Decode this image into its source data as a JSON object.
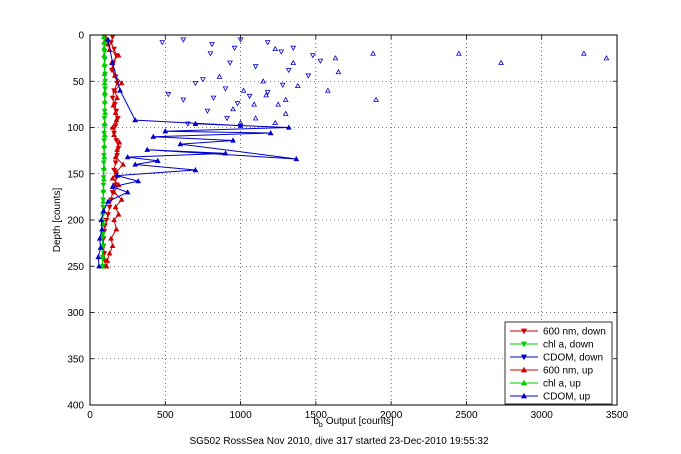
{
  "chart_data": {
    "type": "scatter",
    "title": "",
    "xlabel": "Output [counts]",
    "xlabel_prefix": "b",
    "xlabel_subscript": "b",
    "ylabel": "Depth [counts]",
    "caption": "SG502 RossSea Nov 2010, dive 317 started 23-Dec-2010 19:55:32",
    "xlim": [
      0,
      3500
    ],
    "ylim": [
      0,
      400
    ],
    "y_reversed": true,
    "grid": true,
    "legend_position": "bottom-right",
    "x_ticks": [
      "0",
      "500",
      "1000",
      "1500",
      "2000",
      "2500",
      "3000",
      "3500"
    ],
    "y_ticks": [
      "0",
      "50",
      "100",
      "150",
      "200",
      "250",
      "300",
      "350",
      "400"
    ],
    "series": [
      {
        "name": "600 nm, down",
        "color": "#cc0000",
        "marker": "triangle-down",
        "connected": true,
        "x": [
          150,
          140,
          160,
          175,
          155,
          145,
          170,
          180,
          160,
          150,
          165,
          175,
          185,
          170,
          160,
          175,
          190,
          180,
          170,
          160,
          175,
          165,
          150,
          140,
          130,
          120,
          110,
          100,
          95,
          90,
          90,
          95,
          100,
          100
        ],
        "y": [
          2,
          8,
          15,
          22,
          30,
          38,
          45,
          52,
          60,
          68,
          75,
          82,
          90,
          98,
          106,
          114,
          122,
          130,
          138,
          146,
          154,
          162,
          170,
          178,
          186,
          194,
          200,
          206,
          212,
          220,
          228,
          236,
          244,
          250
        ]
      },
      {
        "name": "chl a, down",
        "color": "#00cc00",
        "marker": "triangle-down",
        "connected": true,
        "x": [
          95,
          96,
          97,
          98,
          99,
          100,
          101,
          100,
          99,
          98,
          97,
          96,
          95,
          94,
          94,
          93,
          92,
          91,
          90,
          90,
          89,
          88,
          88,
          87,
          87,
          86,
          86,
          85,
          85,
          85
        ],
        "y": [
          2,
          10,
          18,
          26,
          34,
          42,
          50,
          58,
          66,
          74,
          82,
          90,
          98,
          106,
          114,
          122,
          130,
          138,
          146,
          154,
          162,
          170,
          178,
          186,
          194,
          202,
          215,
          228,
          240,
          250
        ]
      },
      {
        "name": "CDOM, down",
        "color": "#0000cc",
        "marker": "triangle-down",
        "connected": false,
        "x": [
          480,
          620,
          810,
          1000,
          1180,
          1350,
          1480,
          1530,
          960,
          1270,
          1320,
          800,
          930,
          1100,
          1450,
          1280,
          750,
          1180,
          900,
          1060,
          700,
          820,
          980,
          620,
          520,
          780,
          910,
          650
        ],
        "y": [
          8,
          5,
          10,
          5,
          8,
          14,
          22,
          28,
          14,
          18,
          38,
          20,
          30,
          34,
          44,
          54,
          48,
          62,
          58,
          66,
          52,
          68,
          74,
          70,
          64,
          82,
          90,
          96
        ]
      },
      {
        "name": "600 nm, up",
        "color": "#cc0000",
        "marker": "triangle-up",
        "connected": true,
        "x": [
          110,
          115,
          130,
          150,
          140,
          175,
          160,
          190,
          170,
          210,
          160,
          190,
          150,
          175,
          220,
          170,
          180,
          195,
          160,
          150,
          175,
          170,
          155,
          180,
          165,
          210,
          165,
          150,
          145,
          190,
          130,
          120,
          110,
          100
        ],
        "y": [
          250,
          244,
          236,
          228,
          220,
          210,
          200,
          194,
          186,
          178,
          170,
          162,
          155,
          148,
          140,
          132,
          124,
          116,
          108,
          100,
          92,
          84,
          76,
          68,
          60,
          52,
          44,
          36,
          30,
          22,
          16,
          10,
          5,
          2
        ]
      },
      {
        "name": "chl a, up",
        "color": "#00cc00",
        "marker": "triangle-up",
        "connected": true,
        "x": [
          82,
          82,
          83,
          84,
          85,
          86,
          88,
          90,
          92,
          94,
          95,
          96,
          98,
          99,
          100,
          99,
          98,
          97,
          96,
          95,
          94,
          94,
          93,
          92
        ],
        "y": [
          250,
          240,
          228,
          216,
          204,
          192,
          180,
          168,
          156,
          144,
          132,
          120,
          108,
          96,
          84,
          72,
          62,
          52,
          42,
          32,
          22,
          14,
          8,
          2
        ]
      },
      {
        "name": "CDOM, up",
        "color": "#0000cc",
        "marker": "triangle-up",
        "connected": true,
        "x": [
          60,
          55,
          70,
          65,
          80,
          75,
          90,
          120,
          250,
          150,
          320,
          180,
          700,
          300,
          450,
          250,
          900,
          380,
          1370,
          600,
          950,
          420,
          1200,
          500,
          1320,
          700,
          1000,
          300,
          200,
          150,
          120
        ],
        "y": [
          250,
          240,
          230,
          220,
          210,
          200,
          190,
          180,
          170,
          164,
          158,
          152,
          146,
          140,
          136,
          132,
          128,
          124,
          134,
          118,
          114,
          110,
          106,
          104,
          100,
          96,
          98,
          92,
          60,
          30,
          5
        ],
        "scatter_x": [
          1630,
          1880,
          2450,
          2730,
          3280,
          3430,
          1900,
          1650,
          1230,
          1350,
          1580,
          1380,
          1150,
          1020,
          1090,
          1250,
          1300,
          860,
          1100,
          1230,
          1170,
          950,
          1000,
          1300
        ],
        "scatter_y": [
          25,
          20,
          20,
          30,
          20,
          25,
          70,
          40,
          15,
          30,
          60,
          55,
          50,
          60,
          75,
          75,
          85,
          45,
          90,
          95,
          65,
          80,
          95,
          70
        ]
      }
    ]
  }
}
